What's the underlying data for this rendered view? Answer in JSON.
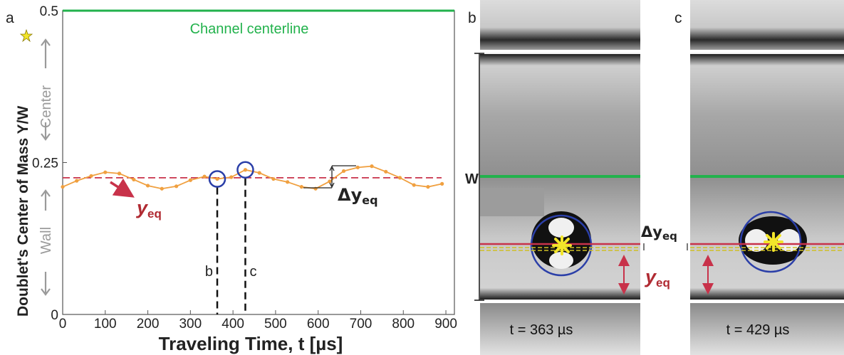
{
  "panel_labels": {
    "a": "a",
    "b": "b",
    "c": "c"
  },
  "plot_a": {
    "ylabel_main": "Doublet's Center of Mass Y/W",
    "y_center_label": "Center",
    "y_wall_label": "Wall",
    "centerline_label": "Channel centerline",
    "yeq_symbol": "y",
    "yeq_sub": "eq",
    "delta_yeq_symbol": "Δy",
    "delta_yeq_sub": "eq",
    "marker_b": "b",
    "marker_c": "c"
  },
  "panel_b": {
    "time_label": "t = 363 µs"
  },
  "panel_c": {
    "time_label": "t = 429 µs"
  },
  "between_panels": {
    "width_label": "W",
    "delta_symbol": "Δy",
    "delta_sub": "eq",
    "yeq_symbol": "y",
    "yeq_sub": "eq"
  },
  "colors": {
    "centerline": "#22b24c",
    "data": "#f0a040",
    "yeq_line": "#c8324a",
    "circle": "#2b3fa8",
    "yeq_text": "#b02a32",
    "star": "#f2e52a",
    "label_gray": "#9a9a9a"
  },
  "chart_data": {
    "type": "line",
    "title": "",
    "xlabel": "Traveling Time, t [µs]",
    "ylabel": "Doublet's Center of Mass Y/W",
    "xlim": [
      0,
      920
    ],
    "ylim": [
      0,
      0.5
    ],
    "xticks": [
      0,
      100,
      200,
      300,
      400,
      500,
      600,
      700,
      800,
      900
    ],
    "yticks": [
      0,
      0.25,
      0.5
    ],
    "ytick_labels": [
      "0",
      "0.25",
      "0.5"
    ],
    "grid": false,
    "y_eq": 0.225,
    "centerline_y": 0.5,
    "marked_times": {
      "b": 363,
      "c": 429
    },
    "series": [
      {
        "x": [
          0,
          33,
          67,
          100,
          133,
          167,
          200,
          233,
          267,
          300,
          333,
          363,
          396,
          429,
          462,
          495,
          528,
          561,
          594,
          627,
          660,
          693,
          726,
          759,
          792,
          825,
          858,
          891
        ],
        "y": [
          0.21,
          0.22,
          0.228,
          0.234,
          0.232,
          0.222,
          0.212,
          0.207,
          0.211,
          0.221,
          0.227,
          0.223,
          0.226,
          0.238,
          0.233,
          0.223,
          0.218,
          0.21,
          0.207,
          0.219,
          0.236,
          0.242,
          0.244,
          0.235,
          0.225,
          0.213,
          0.21,
          0.215
        ]
      }
    ]
  }
}
